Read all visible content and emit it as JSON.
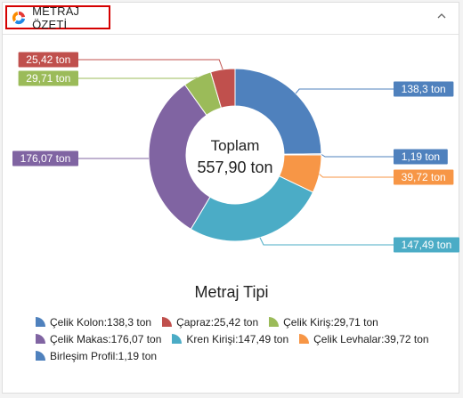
{
  "header": {
    "title": "METRAJ ÖZETİ"
  },
  "colors": {
    "kolon": "#4f81bd",
    "capraz": "#c0504d",
    "kiris": "#9bbb59",
    "makas": "#8064a2",
    "kren": "#4bacc6",
    "levha": "#f79646",
    "birlesim": "#4f81bd"
  },
  "chart_data": {
    "type": "pie",
    "variant": "donut",
    "center_label": {
      "line1": "Toplam",
      "line2": "557,90 ton"
    },
    "legend_title": "Metraj Tipi",
    "legend_position": "bottom",
    "slices": [
      {
        "name": "Çelik Kolon",
        "value": 138.3,
        "label": "138,3 ton",
        "legend": "Çelik Kolon:138,3 ton",
        "color": "#4f81bd"
      },
      {
        "name": "Birleşim Profil",
        "value": 1.19,
        "label": "1,19 ton",
        "legend": "Birleşim Profil:1,19 ton",
        "color": "#4f81bd"
      },
      {
        "name": "Çelik Levhalar",
        "value": 39.72,
        "label": "39,72 ton",
        "legend": "Çelik Levhalar:39,72 ton",
        "color": "#f79646"
      },
      {
        "name": "Kren Kirişi",
        "value": 147.49,
        "label": "147,49 ton",
        "legend": "Kren Kirişi:147,49 ton",
        "color": "#4bacc6"
      },
      {
        "name": "Çelik Makas",
        "value": 176.07,
        "label": "176,07 ton",
        "legend": "Çelik Makas:176,07 ton",
        "color": "#8064a2"
      },
      {
        "name": "Çelik Kiriş",
        "value": 29.71,
        "label": "29,71 ton",
        "legend": "Çelik Kiriş:29,71 ton",
        "color": "#9bbb59"
      },
      {
        "name": "Çapraz",
        "value": 25.42,
        "label": "25,42 ton",
        "legend": "Çapraz:25,42 ton",
        "color": "#c0504d"
      }
    ],
    "legend_rows": [
      [
        "Çelik Kolon",
        "Çapraz",
        "Çelik Kiriş"
      ],
      [
        "Çelik Makas",
        "Kren Kirişi",
        "Çelik Levhalar"
      ],
      [
        "Birleşim Profil"
      ]
    ]
  }
}
